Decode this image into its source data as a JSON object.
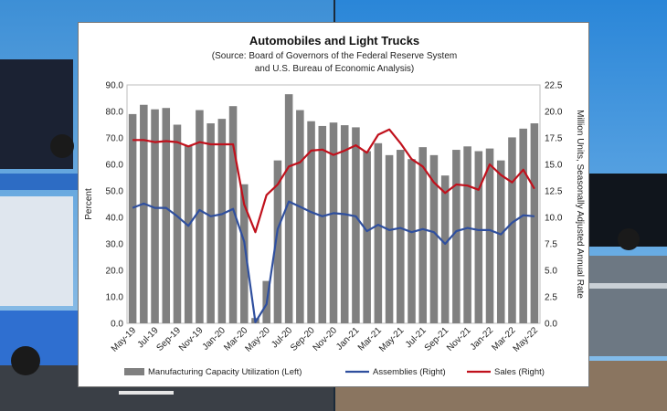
{
  "chart_data": {
    "type": "bar+line",
    "title": "Automobiles and Light Trucks",
    "subtitle_line1": "(Source: Board of Governors of the Federal Reserve System",
    "subtitle_line2": "and U.S. Bureau of Economic Analysis)",
    "ylabel_left": "Percent",
    "ylabel_right": "Million Units, Seasonally Adjusted Annual Rate",
    "ylim_left": [
      0,
      90
    ],
    "ylim_right": [
      0,
      22.5
    ],
    "yticks_left": [
      "0.0",
      "10.0",
      "20.0",
      "30.0",
      "40.0",
      "50.0",
      "60.0",
      "70.0",
      "80.0",
      "90.0"
    ],
    "yticks_right": [
      "0.0",
      "2.5",
      "5.0",
      "7.5",
      "10.0",
      "12.5",
      "15.0",
      "17.5",
      "20.0",
      "22.5"
    ],
    "xtick_labels": [
      "May-19",
      "Jul-19",
      "Sep-19",
      "Nov-19",
      "Jan-20",
      "Mar-20",
      "May-20",
      "Jul-20",
      "Sep-20",
      "Nov-20",
      "Jan-21",
      "Mar-21",
      "May-21",
      "Jul-21",
      "Sep-21",
      "Nov-21",
      "Jan-22",
      "Mar-22",
      "May-22"
    ],
    "categories": [
      "May-19",
      "Jun-19",
      "Jul-19",
      "Aug-19",
      "Sep-19",
      "Oct-19",
      "Nov-19",
      "Dec-19",
      "Jan-20",
      "Feb-20",
      "Mar-20",
      "Apr-20",
      "May-20",
      "Jun-20",
      "Jul-20",
      "Aug-20",
      "Sep-20",
      "Oct-20",
      "Nov-20",
      "Dec-20",
      "Jan-21",
      "Feb-21",
      "Mar-21",
      "Apr-21",
      "May-21",
      "Jun-21",
      "Jul-21",
      "Aug-21",
      "Sep-21",
      "Oct-21",
      "Nov-21",
      "Dec-21",
      "Jan-22",
      "Feb-22",
      "Mar-22",
      "Apr-22",
      "May-22"
    ],
    "legend_position": "bottom",
    "series": [
      {
        "name": "Manufacturing Capacity Utilization (Left)",
        "type": "bar",
        "axis": "left",
        "color": "#808080",
        "values": [
          79.0,
          82.5,
          80.8,
          81.3,
          75.0,
          67.0,
          80.5,
          75.5,
          77.2,
          82.0,
          52.5,
          2.0,
          16.0,
          61.5,
          86.5,
          80.5,
          76.3,
          74.5,
          75.8,
          74.8,
          74.0,
          65.0,
          68.0,
          63.5,
          65.5,
          62.0,
          66.5,
          63.5,
          55.8,
          65.5,
          66.8,
          65.0,
          66.0,
          61.5,
          70.2,
          73.5,
          75.5
        ]
      },
      {
        "name": "Assemblies (Right)",
        "type": "line",
        "axis": "right",
        "color": "#2f4f9e",
        "values": [
          10.9,
          11.3,
          10.9,
          10.9,
          10.1,
          9.2,
          10.7,
          10.1,
          10.3,
          10.8,
          7.7,
          0.1,
          1.8,
          8.9,
          11.5,
          11.0,
          10.5,
          10.1,
          10.4,
          10.3,
          10.1,
          8.7,
          9.3,
          8.8,
          9.0,
          8.6,
          8.9,
          8.6,
          7.5,
          8.7,
          9.0,
          8.8,
          8.8,
          8.4,
          9.5,
          10.2,
          10.1
        ]
      },
      {
        "name": "Sales (Right)",
        "type": "line",
        "axis": "right",
        "color": "#c0111c",
        "values": [
          17.3,
          17.3,
          17.1,
          17.2,
          17.1,
          16.7,
          17.1,
          16.9,
          16.9,
          16.9,
          11.2,
          8.6,
          12.1,
          13.1,
          14.8,
          15.2,
          16.3,
          16.4,
          15.9,
          16.3,
          16.8,
          16.1,
          17.8,
          18.3,
          17.0,
          15.5,
          14.8,
          13.3,
          12.3,
          13.1,
          13.0,
          12.6,
          15.0,
          14.0,
          13.3,
          14.5,
          12.7
        ]
      }
    ]
  }
}
